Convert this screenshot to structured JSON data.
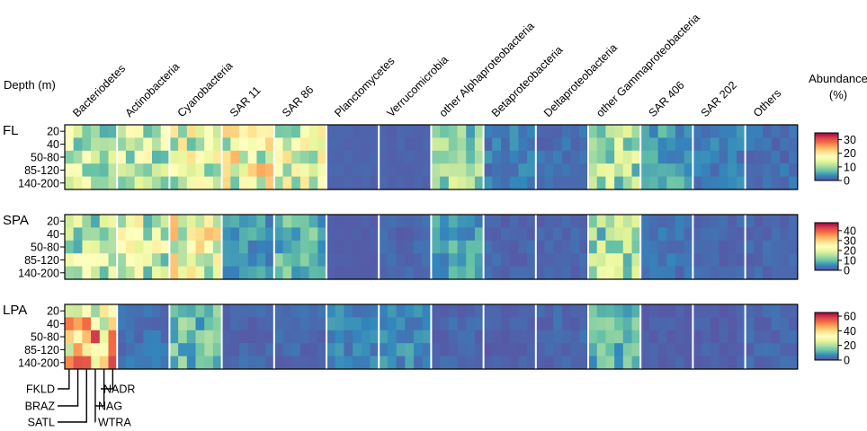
{
  "chart_data": {
    "type": "heatmap",
    "row_axis_label": "Depth (m)",
    "depths": [
      "20",
      "40",
      "50-80",
      "85-120",
      "140-200"
    ],
    "taxa": [
      "Bacteriodetes",
      "Actinobacteria",
      "Cyanobacteria",
      "SAR 11",
      "SAR 86",
      "Planctomycetes",
      "Verrucomicrobia",
      "other Alphaproteobacteria",
      "Betaproteobacteria",
      "Deltaproteobacteria",
      "other Gammaproteobacteria",
      "SAR 406",
      "SAR 202",
      "Others"
    ],
    "provinces": [
      "FKLD",
      "BRAZ",
      "SATL",
      "WTRA",
      "NAG",
      "NADR"
    ],
    "legend": {
      "title_line1": "Abundance",
      "title_line2": "(%)",
      "colormap": [
        "#5e4fa2",
        "#3288bd",
        "#66c2a5",
        "#abdda4",
        "#e6f598",
        "#ffffbf",
        "#fee08b",
        "#fdae61",
        "#f46d43",
        "#d53e4f",
        "#9e0142"
      ]
    },
    "panels": [
      {
        "label": "FL",
        "vmax": 35,
        "ticks": [
          "0",
          "10",
          "20",
          "30"
        ],
        "tick_values": [
          0,
          10,
          20,
          30
        ],
        "mean": [
          12,
          12,
          14,
          16,
          14,
          1,
          1,
          9,
          3,
          2,
          10,
          5,
          3,
          2
        ]
      },
      {
        "label": "SPA",
        "vmax": 48,
        "ticks": [
          "0",
          "10",
          "20",
          "30",
          "40"
        ],
        "tick_values": [
          0,
          10,
          20,
          30,
          40
        ],
        "mean": [
          16,
          18,
          22,
          6,
          9,
          1,
          2,
          7,
          2,
          2,
          14,
          3,
          2,
          2
        ]
      },
      {
        "label": "LPA",
        "vmax": 65,
        "ticks": [
          "0",
          "20",
          "40",
          "60"
        ],
        "tick_values": [
          0,
          20,
          40,
          60
        ],
        "mean": [
          38,
          4,
          14,
          3,
          3,
          6,
          7,
          3,
          2,
          3,
          12,
          2,
          2,
          3
        ]
      }
    ]
  }
}
